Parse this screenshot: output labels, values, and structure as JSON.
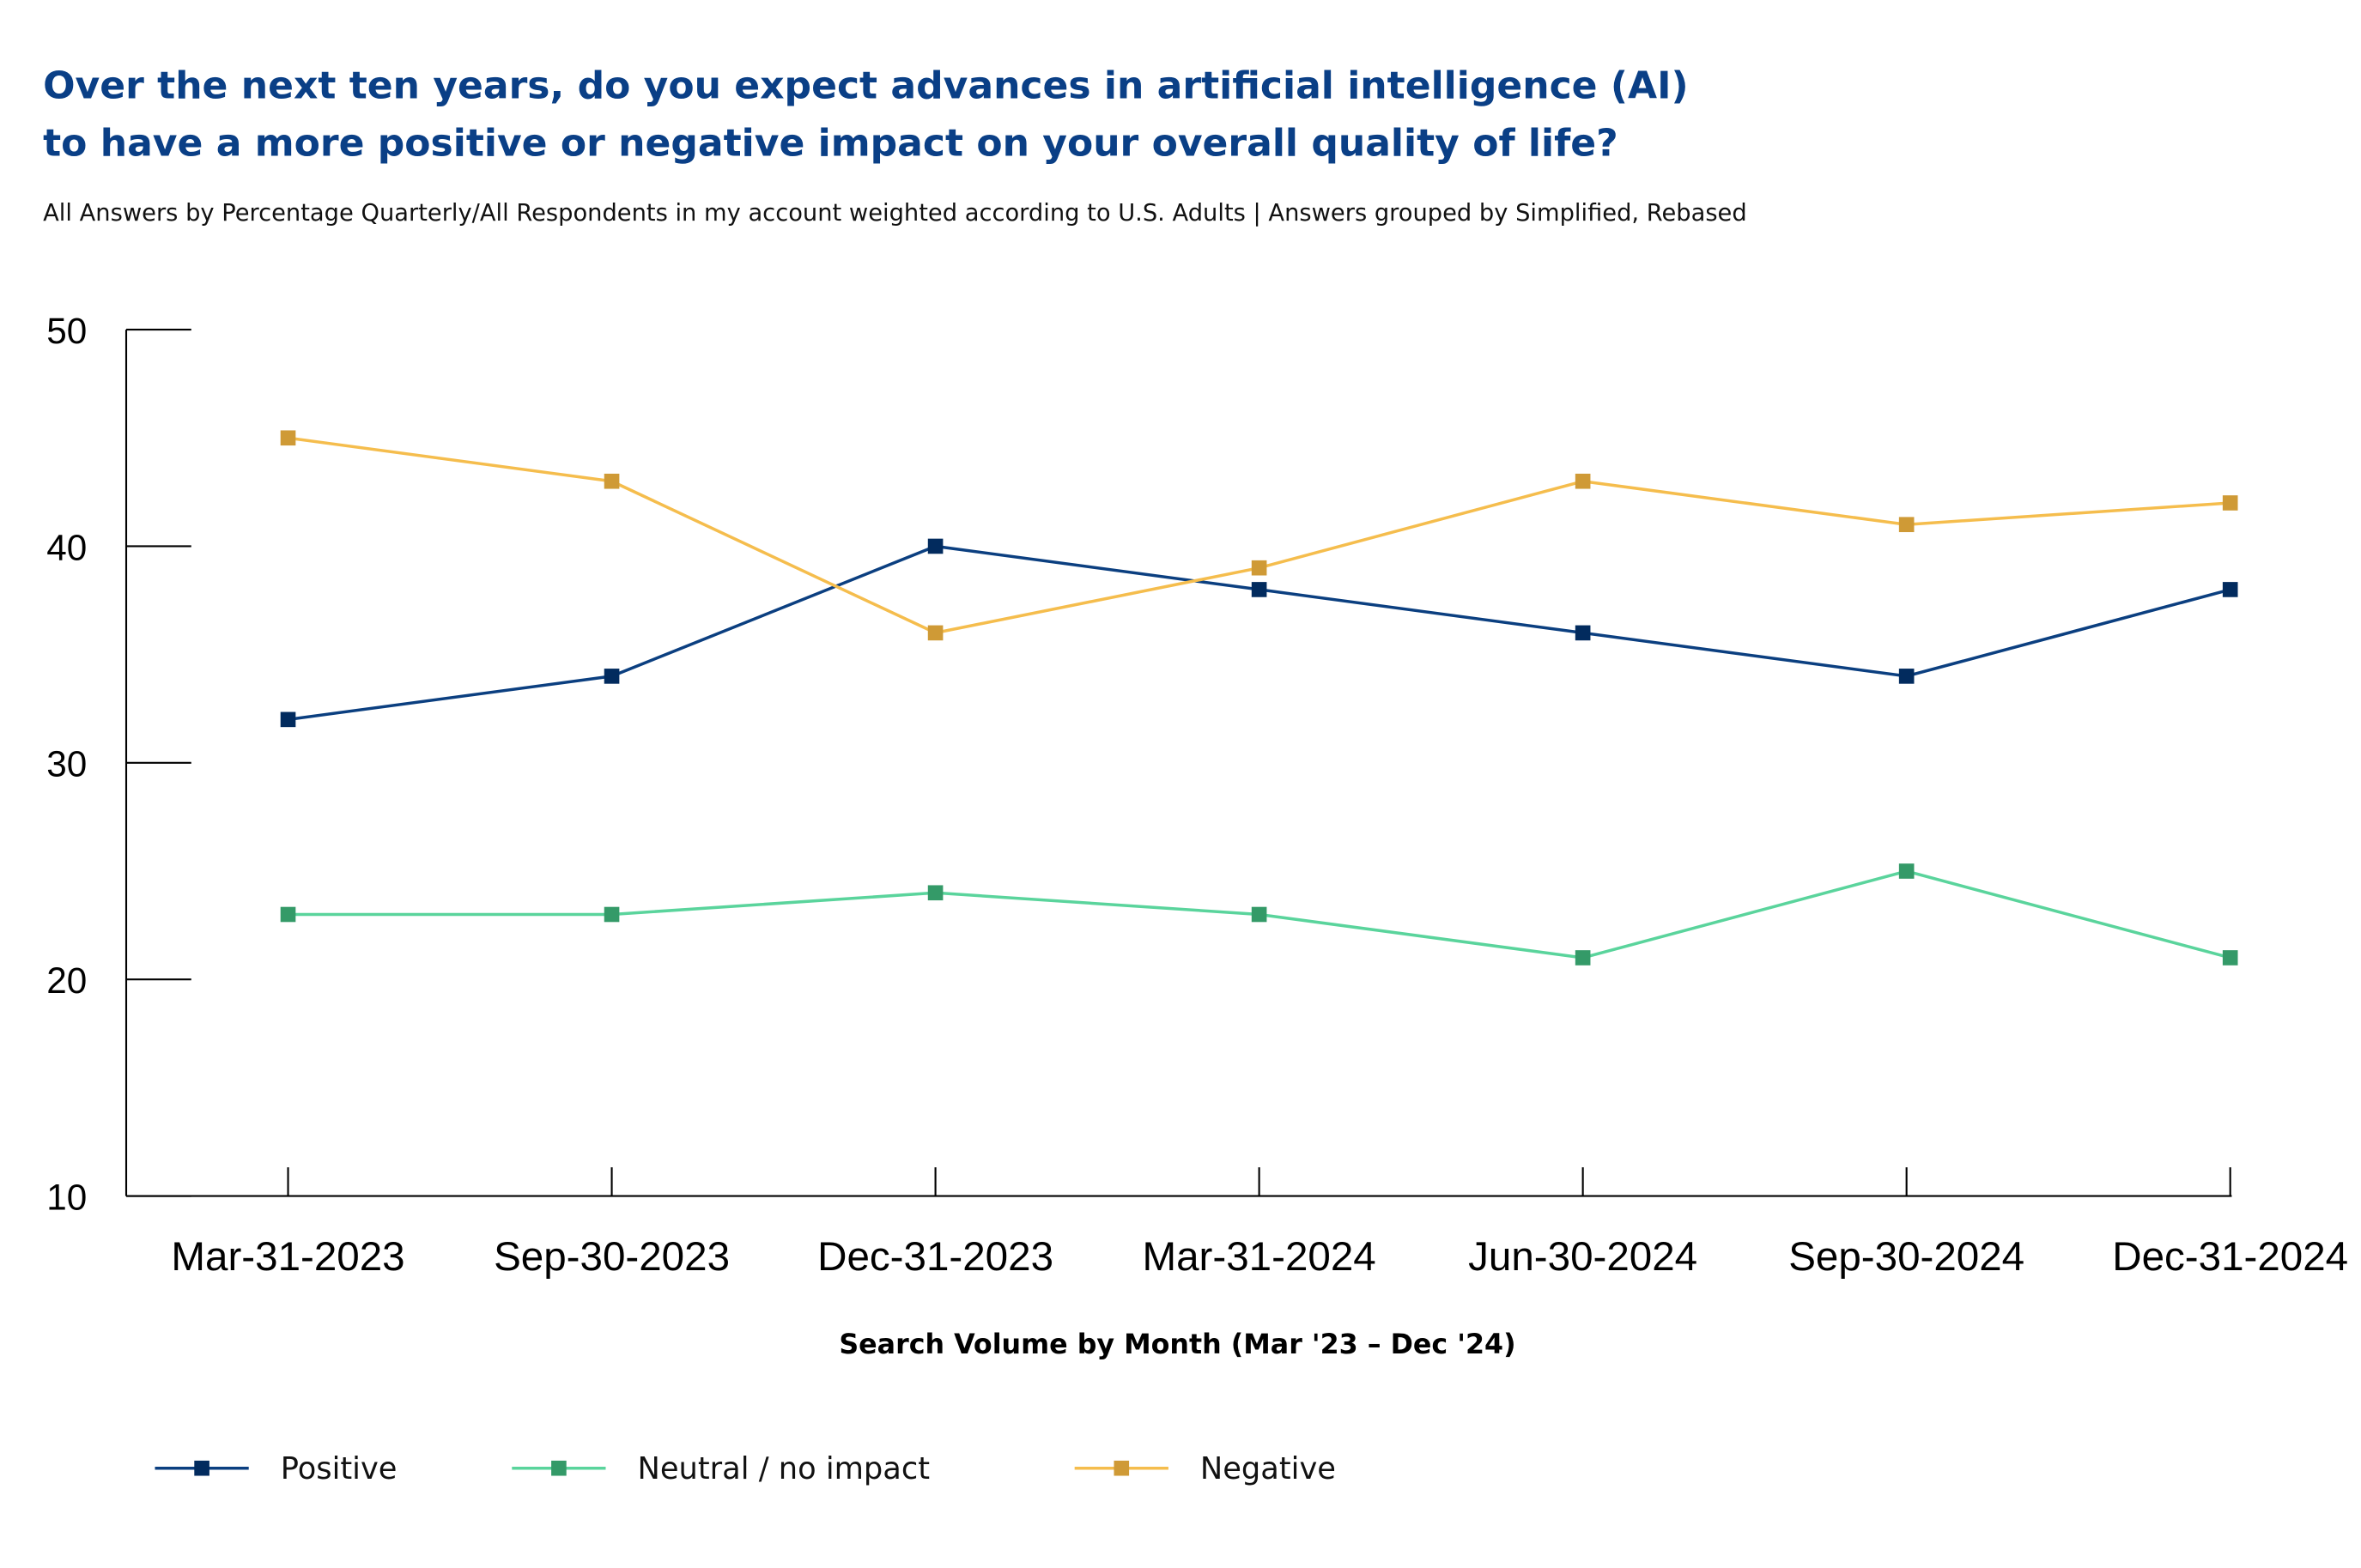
{
  "chart_data": {
    "type": "line",
    "title": "Over the next ten years, do you expect advances in artificial intelligence (AI)",
    "title_line2": "to have a more positive or negative impact on your overall quality of life?",
    "subtitle": "All Answers by Percentage Quarterly/All Respondents in my account weighted according to U.S. Adults | Answers grouped by Simplified, Rebased",
    "xlabel": "Search Volume by Month (Mar '23 – Dec '24)",
    "ylabel": "",
    "categories": [
      "Mar-31-2023",
      "Sep-30-2023",
      "Dec-31-2023",
      "Mar-31-2024",
      "Jun-30-2024",
      "Sep-30-2024",
      "Dec-31-2024"
    ],
    "ylim": [
      10,
      50
    ],
    "yticks": [
      "10",
      "20",
      "30",
      "40",
      "50"
    ],
    "grid": false,
    "legend_position": "bottom-left",
    "series": [
      {
        "name": "Positive",
        "values": [
          32,
          34,
          40,
          38,
          36,
          34,
          38
        ],
        "line_color": "#0b3f80",
        "marker_color": "#022b5e"
      },
      {
        "name": "Neutral / no impact",
        "values": [
          23,
          23,
          24,
          23,
          21,
          25,
          21
        ],
        "line_color": "#5ad49c",
        "marker_color": "#349a68"
      },
      {
        "name": "Negative",
        "values": [
          45,
          43,
          36,
          39,
          43,
          41,
          42
        ],
        "line_color": "#f5bd4d",
        "marker_color": "#cf9a36"
      }
    ]
  }
}
